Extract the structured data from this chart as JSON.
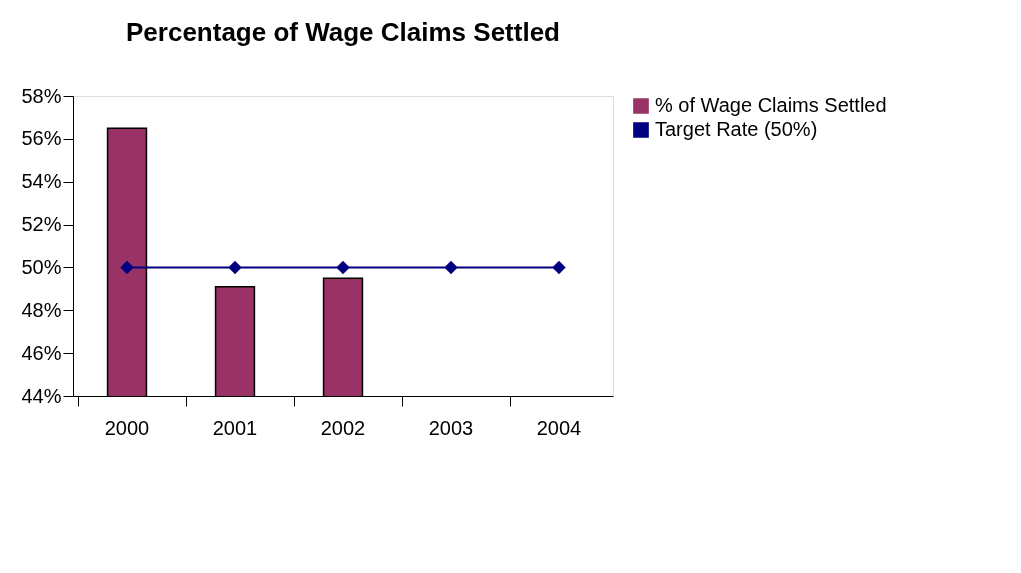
{
  "chart_data": {
    "type": "bar",
    "title": "Percentage of Wage Claims Settled",
    "categories": [
      "2000",
      "2001",
      "2002",
      "2003",
      "2004"
    ],
    "series": [
      {
        "name": "% of Wage Claims Settled",
        "type": "bar",
        "color": "#993366",
        "values": [
          56.5,
          49.1,
          49.5,
          null,
          null
        ]
      },
      {
        "name": "Target Rate (50%)",
        "type": "line",
        "color": "#000080",
        "marker": "diamond",
        "values": [
          50,
          50,
          50,
          50,
          50
        ]
      }
    ],
    "ylim": [
      44,
      58
    ],
    "yticks": [
      {
        "value": 44,
        "label": "44%"
      },
      {
        "value": 46,
        "label": "46%"
      },
      {
        "value": 48,
        "label": "48%"
      },
      {
        "value": 50,
        "label": "50%"
      },
      {
        "value": 52,
        "label": "52%"
      },
      {
        "value": 54,
        "label": "54%"
      },
      {
        "value": 56,
        "label": "56%"
      },
      {
        "value": 58,
        "label": "58%"
      }
    ],
    "grid": false,
    "legend": "right"
  }
}
